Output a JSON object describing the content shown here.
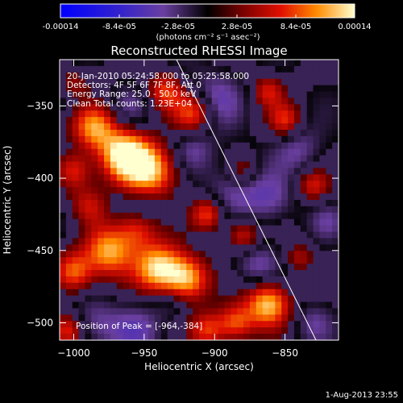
{
  "chart_data": {
    "type": "heatmap",
    "title": "Reconstructed RHESSI Image",
    "xlabel": "Heliocentric X (arcsec)",
    "ylabel": "Heliocentric Y (arcsec)",
    "xlim": [
      -1010,
      -812
    ],
    "ylim": [
      -512,
      -318
    ],
    "x_ticks": [
      -1000,
      -950,
      -900,
      -850
    ],
    "y_ticks": [
      -350,
      -400,
      -450,
      -500
    ],
    "colorbar": {
      "min": -0.00014,
      "max": 0.00014,
      "tick_values": [
        -0.00014,
        -8.4e-05,
        -2.8e-05,
        2.8e-05,
        8.4e-05,
        0.00014
      ],
      "tick_labels": [
        "-0.00014",
        "-8.4e-05",
        "-2.8e-05",
        "2.8e-05",
        "8.4e-05",
        "0.00014"
      ],
      "label": "(photons cm⁻² s⁻¹ asec⁻²)"
    },
    "annotations": [
      "20-Jan-2010 05:24:58.000 to 05:25:58.000",
      "Detectors: 4F 5F 6F 7F 8F, Att 0",
      "Energy Range: 25.0 - 50.0 keV",
      "Clean    Total counts: 1.23E+04"
    ],
    "peak_label": "Position of Peak = [-964,-384]",
    "peak": [
      -964,
      -384
    ],
    "limb_line": [
      [
        -927,
        -318
      ],
      [
        -828,
        -512
      ]
    ],
    "grid": false
  },
  "footer": {
    "date": "1-Aug-2013 23:55"
  },
  "colors": {
    "background": "#000000",
    "text": "#ffffff"
  }
}
